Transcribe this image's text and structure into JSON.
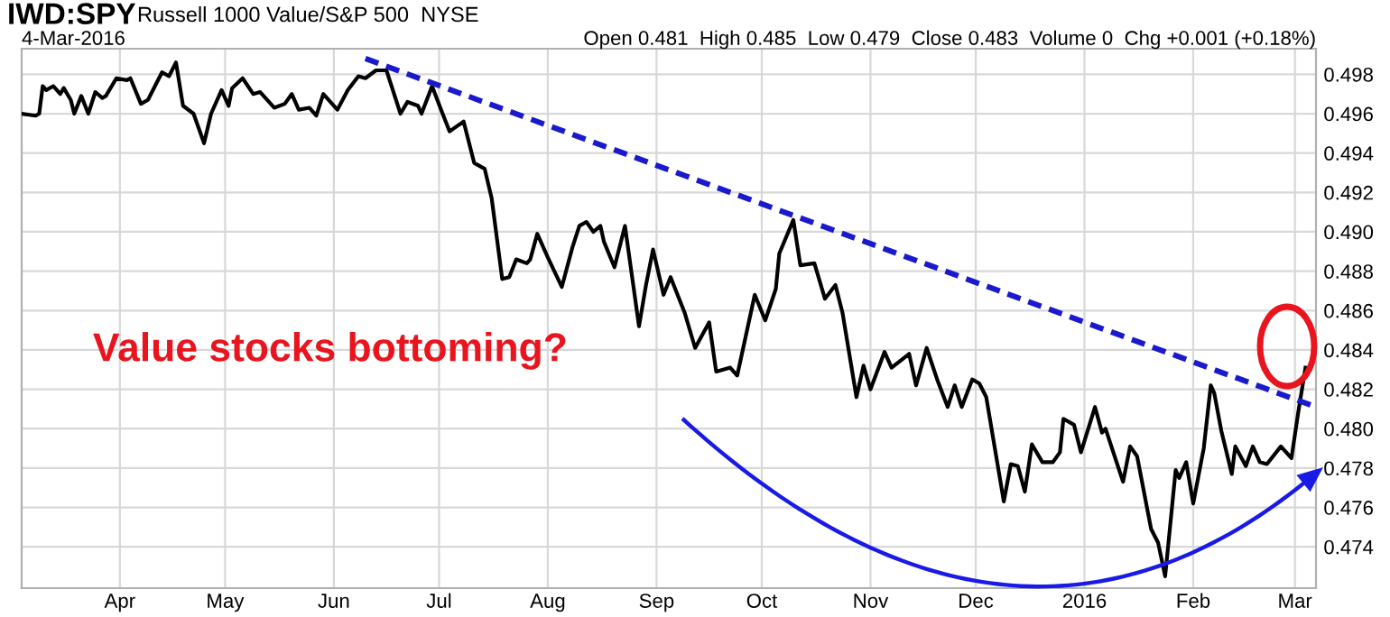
{
  "chart_data": {
    "type": "line",
    "title": "IWD:SPY",
    "subtitle": "Russell 1000 Value/S&P 500  NYSE",
    "annotations": [
      "4-Mar-2016",
      "Open 0.481  High 0.485  Low 0.479  Close 0.483  Volume 0  Chg +0.001 (+0.18%)",
      "Value stocks bottoming?"
    ],
    "xlim": [
      "2015-03-04",
      "2016-03-07"
    ],
    "xticks": [
      {
        "value": "2015-04-01",
        "label": "Apr"
      },
      {
        "value": "2015-05-01",
        "label": "May"
      },
      {
        "value": "2015-06-01",
        "label": "Jun"
      },
      {
        "value": "2015-07-01",
        "label": "Jul"
      },
      {
        "value": "2015-08-01",
        "label": "Aug"
      },
      {
        "value": "2015-09-01",
        "label": "Sep"
      },
      {
        "value": "2015-10-01",
        "label": "Oct"
      },
      {
        "value": "2015-11-01",
        "label": "Nov"
      },
      {
        "value": "2015-12-01",
        "label": "Dec"
      },
      {
        "value": "2016-01-01",
        "label": "2016"
      },
      {
        "value": "2016-02-01",
        "label": "Feb"
      },
      {
        "value": "2016-03-01",
        "label": "Mar"
      }
    ],
    "ylim": [
      0.4719,
      0.4993
    ],
    "yticks": [
      0.474,
      0.476,
      0.478,
      {
        "value": 0.48,
        "label": "0.480"
      },
      0.482,
      0.484,
      0.486,
      0.488,
      {
        "value": 0.49,
        "label": "0.490"
      },
      0.492,
      0.494,
      0.496,
      0.498
    ],
    "grid": true,
    "legend": false,
    "series": [
      {
        "color": "#000000",
        "line_style": "solid",
        "x": [
          "2015-03-04",
          "2015-03-08",
          "2015-03-09",
          "2015-03-10",
          "2015-03-11",
          "2015-03-13",
          "2015-03-15",
          "2015-03-16",
          "2015-03-18",
          "2015-03-19",
          "2015-03-21",
          "2015-03-23",
          "2015-03-25",
          "2015-03-27",
          "2015-03-28",
          "2015-03-31",
          "2015-04-03",
          "2015-04-04",
          "2015-04-07",
          "2015-04-09",
          "2015-04-13",
          "2015-04-15",
          "2015-04-17",
          "2015-04-19",
          "2015-04-22",
          "2015-04-25",
          "2015-04-27",
          "2015-04-30",
          "2015-05-02",
          "2015-05-03",
          "2015-05-06",
          "2015-05-09",
          "2015-05-11",
          "2015-05-15",
          "2015-05-18",
          "2015-05-20",
          "2015-05-22",
          "2015-05-25",
          "2015-05-27",
          "2015-05-29",
          "2015-06-02",
          "2015-06-05",
          "2015-06-08",
          "2015-06-10",
          "2015-06-13",
          "2015-06-16",
          "2015-06-20",
          "2015-06-22",
          "2015-06-25",
          "2015-06-26",
          "2015-06-29",
          "2015-07-02",
          "2015-07-04",
          "2015-07-08",
          "2015-07-11",
          "2015-07-14",
          "2015-07-16",
          "2015-07-19",
          "2015-07-21",
          "2015-07-23",
          "2015-07-26",
          "2015-07-27",
          "2015-07-29",
          "2015-08-01",
          "2015-08-05",
          "2015-08-08",
          "2015-08-10",
          "2015-08-12",
          "2015-08-14",
          "2015-08-16",
          "2015-08-17",
          "2015-08-20",
          "2015-08-23",
          "2015-08-27",
          "2015-08-29",
          "2015-08-31",
          "2015-09-03",
          "2015-09-05",
          "2015-09-09",
          "2015-09-12",
          "2015-09-16",
          "2015-09-18",
          "2015-09-22",
          "2015-09-24",
          "2015-09-29",
          "2015-10-02",
          "2015-10-05",
          "2015-10-06",
          "2015-10-10",
          "2015-10-12",
          "2015-10-16",
          "2015-10-19",
          "2015-10-22",
          "2015-10-24",
          "2015-10-28",
          "2015-10-30",
          "2015-11-01",
          "2015-11-05",
          "2015-11-07",
          "2015-11-12",
          "2015-11-14",
          "2015-11-17",
          "2015-11-20",
          "2015-11-23",
          "2015-11-25",
          "2015-11-27",
          "2015-11-30",
          "2015-12-02",
          "2015-12-04",
          "2015-12-09",
          "2015-12-11",
          "2015-12-13",
          "2015-12-15",
          "2015-12-17",
          "2015-12-20",
          "2015-12-23",
          "2015-12-25",
          "2015-12-26",
          "2015-12-29",
          "2015-12-31",
          "2016-01-04",
          "2016-01-06",
          "2016-01-07",
          "2016-01-12",
          "2016-01-14",
          "2016-01-16",
          "2016-01-20",
          "2016-01-22",
          "2016-01-24",
          "2016-01-27",
          "2016-01-28",
          "2016-01-30",
          "2016-02-01",
          "2016-02-04",
          "2016-02-06",
          "2016-02-07",
          "2016-02-09",
          "2016-02-12",
          "2016-02-13",
          "2016-02-16",
          "2016-02-18",
          "2016-02-20",
          "2016-02-22",
          "2016-02-26",
          "2016-02-29",
          "2016-03-02",
          "2016-03-04"
        ],
        "values": [
          0.496,
          0.4959,
          0.496,
          0.4974,
          0.4972,
          0.4974,
          0.497,
          0.4973,
          0.4967,
          0.496,
          0.4969,
          0.496,
          0.4971,
          0.4968,
          0.4969,
          0.4978,
          0.4977,
          0.4978,
          0.4965,
          0.4967,
          0.4981,
          0.4979,
          0.4986,
          0.4964,
          0.496,
          0.4945,
          0.496,
          0.4972,
          0.4964,
          0.4973,
          0.4978,
          0.497,
          0.4971,
          0.4963,
          0.4965,
          0.497,
          0.4962,
          0.4963,
          0.4959,
          0.497,
          0.4962,
          0.4972,
          0.4979,
          0.4978,
          0.4982,
          0.4982,
          0.496,
          0.4966,
          0.4964,
          0.496,
          0.4974,
          0.496,
          0.4951,
          0.4956,
          0.4935,
          0.4932,
          0.4917,
          0.4876,
          0.4877,
          0.4886,
          0.4884,
          0.4886,
          0.4899,
          0.4887,
          0.4872,
          0.4892,
          0.4903,
          0.4905,
          0.49,
          0.4903,
          0.4895,
          0.4882,
          0.4903,
          0.4852,
          0.4873,
          0.4891,
          0.4868,
          0.4877,
          0.4859,
          0.4841,
          0.4854,
          0.4829,
          0.4831,
          0.4827,
          0.4868,
          0.4855,
          0.4871,
          0.4889,
          0.4906,
          0.4883,
          0.4884,
          0.4866,
          0.4873,
          0.4859,
          0.4816,
          0.4832,
          0.482,
          0.4839,
          0.4831,
          0.4838,
          0.4822,
          0.4841,
          0.4825,
          0.4811,
          0.4822,
          0.4811,
          0.4825,
          0.4823,
          0.4816,
          0.4763,
          0.4782,
          0.4781,
          0.4768,
          0.4792,
          0.4783,
          0.4783,
          0.4788,
          0.4805,
          0.4802,
          0.4788,
          0.4811,
          0.4798,
          0.48,
          0.4773,
          0.4791,
          0.4786,
          0.4749,
          0.4742,
          0.4725,
          0.4779,
          0.4775,
          0.4783,
          0.4762,
          0.479,
          0.4822,
          0.4818,
          0.4799,
          0.4777,
          0.4791,
          0.4781,
          0.4791,
          0.4783,
          0.4782,
          0.4791,
          0.4785,
          0.4809,
          0.4831
        ]
      },
      {
        "color": "#1a1acc",
        "line_style": "dashed",
        "x": [
          "2015-06-10",
          "2016-03-07"
        ],
        "values": [
          0.4988,
          0.4811
        ]
      }
    ]
  }
}
